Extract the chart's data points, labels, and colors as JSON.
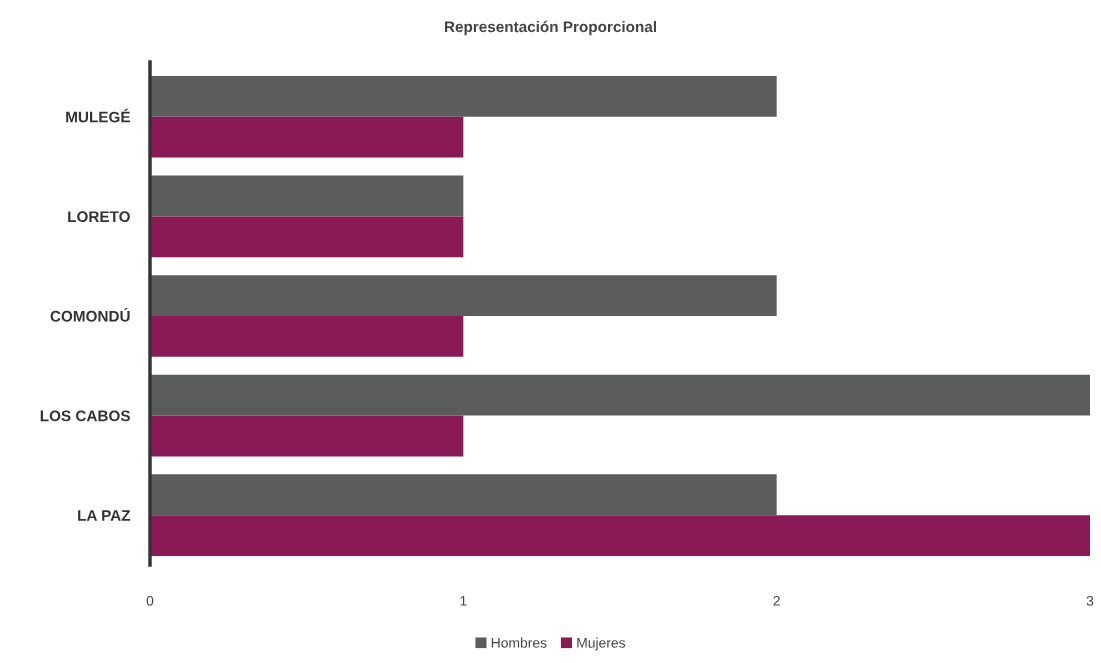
{
  "chart_data": {
    "type": "bar",
    "orientation": "horizontal",
    "title": "Representación Proporcional",
    "categories": [
      "MULEGÉ",
      "LORETO",
      "COMONDÚ",
      "LOS CABOS",
      "LA PAZ"
    ],
    "series": [
      {
        "name": "Hombres",
        "color": "#5b5d5c",
        "values": [
          2,
          1,
          2,
          3,
          2
        ]
      },
      {
        "name": "Mujeres",
        "color": "#8a1a55",
        "values": [
          1,
          1,
          1,
          1,
          3
        ]
      }
    ],
    "xlim": [
      0,
      3
    ],
    "xticks": [
      0,
      1,
      2,
      3
    ],
    "legend": "bottom"
  }
}
